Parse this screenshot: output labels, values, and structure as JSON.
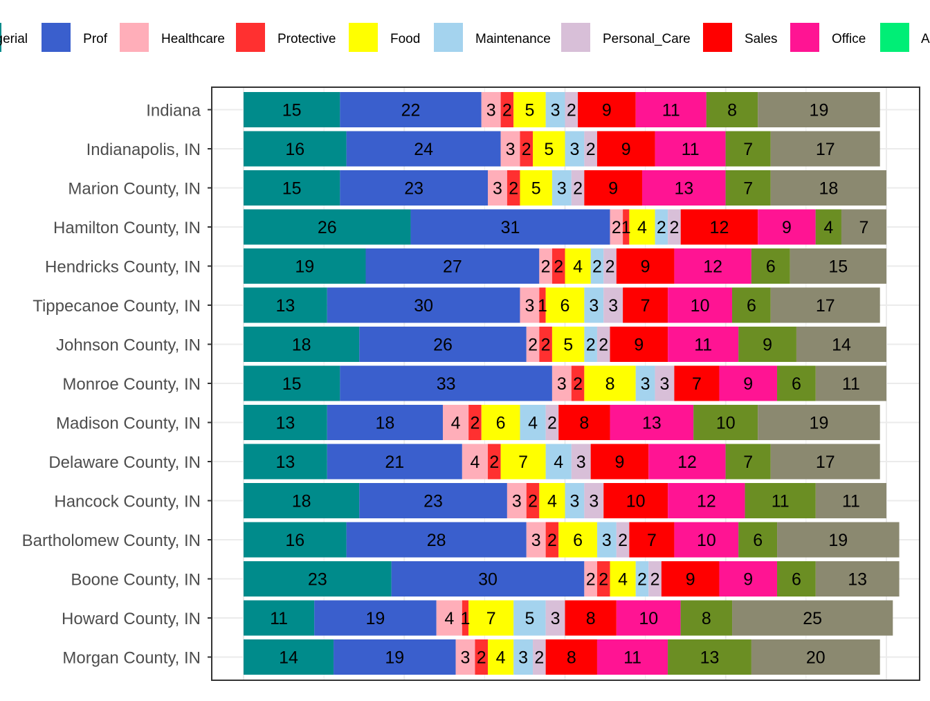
{
  "chart_data": {
    "type": "bar",
    "orientation": "horizontal",
    "stacked": true,
    "grid": true,
    "legend_position": "top",
    "xlim": [
      0,
      100
    ],
    "title": "",
    "xlabel": "",
    "ylabel": "",
    "legend_visible_labels": [
      "gerial",
      "Prof",
      "Healthcare",
      "Protective",
      "Food",
      "Maintenance",
      "Personal_Care",
      "Sales",
      "Office",
      "A"
    ],
    "categories": [
      "Indiana",
      "Indianapolis, IN",
      "Marion County, IN",
      "Hamilton County, IN",
      "Hendricks County, IN",
      "Tippecanoe County, IN",
      "Johnson County, IN",
      "Monroe County, IN",
      "Madison County, IN",
      "Delaware County, IN",
      "Hancock County, IN",
      "Bartholomew County, IN",
      "Boone County, IN",
      "Howard County, IN",
      "Morgan County, IN"
    ],
    "series": [
      {
        "name": "",
        "color": "#008B8B",
        "values": [
          15,
          16,
          15,
          26,
          19,
          13,
          18,
          15,
          13,
          13,
          18,
          16,
          23,
          11,
          14
        ]
      },
      {
        "name": "Prof",
        "color": "#3A5FCD",
        "values": [
          22,
          24,
          23,
          31,
          27,
          30,
          26,
          33,
          18,
          21,
          23,
          28,
          30,
          19,
          19
        ]
      },
      {
        "name": "Healthcare",
        "color": "#FFAEB9",
        "values": [
          3,
          3,
          3,
          2,
          2,
          3,
          2,
          3,
          4,
          4,
          3,
          3,
          2,
          4,
          3
        ]
      },
      {
        "name": "Protective",
        "color": "#FF3030",
        "values": [
          2,
          2,
          2,
          1,
          2,
          1,
          2,
          2,
          2,
          2,
          2,
          2,
          2,
          1,
          2
        ]
      },
      {
        "name": "Food",
        "color": "#FFFF00",
        "values": [
          5,
          5,
          5,
          4,
          4,
          6,
          5,
          8,
          6,
          7,
          4,
          6,
          4,
          7,
          4
        ]
      },
      {
        "name": "Maintenance",
        "color": "#A4D3EE",
        "values": [
          3,
          3,
          3,
          2,
          2,
          3,
          2,
          3,
          4,
          4,
          3,
          3,
          2,
          5,
          3
        ]
      },
      {
        "name": "Personal_Care",
        "color": "#D8BFD8",
        "values": [
          2,
          2,
          2,
          2,
          2,
          3,
          2,
          3,
          2,
          3,
          3,
          2,
          2,
          3,
          2
        ]
      },
      {
        "name": "Sales",
        "color": "#FF0000",
        "values": [
          9,
          9,
          9,
          12,
          9,
          7,
          9,
          7,
          8,
          9,
          10,
          7,
          9,
          8,
          8
        ]
      },
      {
        "name": "Office",
        "color": "#FF1493",
        "values": [
          11,
          11,
          13,
          9,
          12,
          10,
          11,
          9,
          13,
          12,
          12,
          10,
          9,
          10,
          11
        ]
      },
      {
        "name": "A",
        "color": "#00EE76",
        "values": [
          0,
          0,
          0,
          0,
          0,
          0,
          0,
          0,
          0,
          0,
          0,
          0,
          0,
          0,
          0
        ]
      },
      {
        "name": "",
        "color": "#6B8E23",
        "values": [
          8,
          7,
          7,
          4,
          6,
          6,
          9,
          6,
          10,
          7,
          11,
          6,
          6,
          8,
          13
        ]
      },
      {
        "name": "",
        "color": "#8B8970",
        "values": [
          19,
          17,
          18,
          7,
          15,
          17,
          14,
          11,
          19,
          17,
          11,
          19,
          13,
          25,
          20
        ]
      }
    ]
  }
}
